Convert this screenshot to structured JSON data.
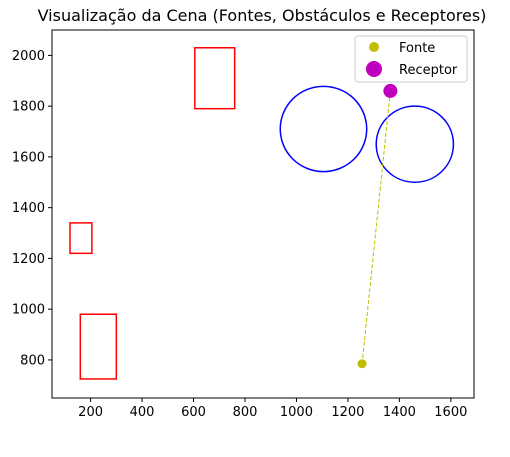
{
  "chart_data": {
    "type": "scatter",
    "title": "Visualização da Cena (Fontes, Obstáculos e Receptores)",
    "xlabel": "",
    "ylabel": "",
    "xlim": [
      50,
      1690
    ],
    "ylim": [
      650,
      2100
    ],
    "xticks": [
      200,
      400,
      600,
      800,
      1000,
      1200,
      1400,
      1600
    ],
    "yticks": [
      800,
      1000,
      1200,
      1400,
      1600,
      1800,
      2000
    ],
    "grid": false,
    "legend_position": "upper right",
    "colors": {
      "source": "#bfbf00",
      "receptor": "#bf00bf",
      "rectangle_obstacle": "#ff0000",
      "circle_obstacle": "#0000ff",
      "ray": "#bfbf00"
    },
    "legend": [
      {
        "label": "Fonte",
        "kind": "source"
      },
      {
        "label": "Receptor",
        "kind": "receptor"
      }
    ],
    "sources": [
      {
        "x": 1255,
        "y": 785
      }
    ],
    "receptors": [
      {
        "x": 1365,
        "y": 1860
      }
    ],
    "rays": [
      {
        "x1": 1255,
        "y1": 785,
        "x2": 1365,
        "y2": 1860
      }
    ],
    "rectangle_obstacles": [
      {
        "x": 605,
        "y": 1790,
        "width": 155,
        "height": 240
      },
      {
        "x": 120,
        "y": 1220,
        "width": 85,
        "height": 120
      },
      {
        "x": 160,
        "y": 725,
        "width": 140,
        "height": 255
      }
    ],
    "circle_obstacles": [
      {
        "cx": 1105,
        "cy": 1710,
        "r": 168
      },
      {
        "cx": 1460,
        "cy": 1650,
        "r": 150
      }
    ]
  }
}
